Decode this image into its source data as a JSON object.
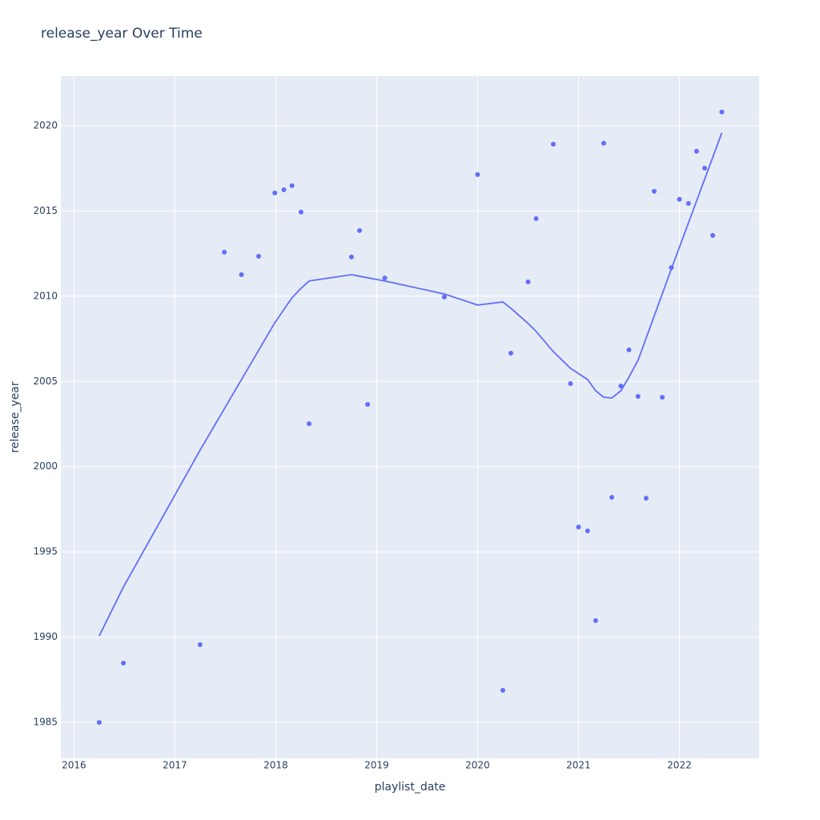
{
  "chart_data": {
    "type": "scatter",
    "title": "release_year Over Time",
    "x_label": "playlist_date",
    "y_label": "release_year",
    "xlim": [
      2015.87,
      2022.79
    ],
    "ylim": [
      1982.89,
      2022.91
    ],
    "xticks": [
      2016,
      2017,
      2018,
      2019,
      2020,
      2021,
      2022
    ],
    "yticks": [
      1985,
      1990,
      1995,
      2000,
      2005,
      2010,
      2015,
      2020
    ],
    "grid": true,
    "series": [
      {
        "mode": "markers",
        "color": "#636efa",
        "x": [
          2016.25,
          2016.49,
          2017.25,
          2017.49,
          2017.66,
          2017.83,
          2017.99,
          2018.08,
          2018.16,
          2018.25,
          2018.33,
          2018.75,
          2018.83,
          2018.91,
          2019.08,
          2019.67,
          2020.0,
          2020.25,
          2020.33,
          2020.5,
          2020.58,
          2020.75,
          2020.92,
          2021.0,
          2021.09,
          2021.17,
          2021.25,
          2021.33,
          2021.42,
          2021.5,
          2021.59,
          2021.67,
          2021.75,
          2021.83,
          2021.92,
          2022.0,
          2022.09,
          2022.17,
          2022.25,
          2022.33,
          2022.42
        ],
        "values": [
          1985.0,
          1988.48,
          1989.56,
          2012.58,
          2011.26,
          2012.34,
          2016.05,
          2016.24,
          2016.48,
          2014.93,
          2002.52,
          2012.3,
          2013.85,
          2003.65,
          2011.07,
          2009.95,
          2017.13,
          1986.88,
          2006.66,
          2010.84,
          2014.55,
          2018.92,
          2004.87,
          1996.46,
          1996.23,
          1990.97,
          2018.97,
          1998.2,
          2004.73,
          2006.85,
          2004.12,
          1998.15,
          2016.15,
          2004.07,
          2011.68,
          2015.68,
          2015.44,
          2018.5,
          2017.51,
          2013.56,
          2020.8
        ]
      },
      {
        "mode": "lines",
        "color": "#636efa",
        "x": [
          2016.25,
          2016.49,
          2017.25,
          2017.99,
          2018.16,
          2018.25,
          2018.33,
          2018.75,
          2018.83,
          2019.08,
          2019.67,
          2020.0,
          2020.25,
          2020.33,
          2020.5,
          2020.58,
          2020.75,
          2020.92,
          2021.09,
          2021.17,
          2021.25,
          2021.33,
          2021.42,
          2021.5,
          2021.59,
          2021.92,
          2022.42
        ],
        "values": [
          1990.07,
          1992.94,
          2000.97,
          2008.44,
          2009.9,
          2010.46,
          2010.89,
          2011.26,
          2011.17,
          2010.89,
          2010.13,
          2009.48,
          2009.66,
          2009.29,
          2008.4,
          2007.93,
          2006.75,
          2005.77,
          2005.11,
          2004.45,
          2004.07,
          2004.03,
          2004.45,
          2005.25,
          2006.24,
          2011.59,
          2019.58
        ]
      }
    ]
  }
}
